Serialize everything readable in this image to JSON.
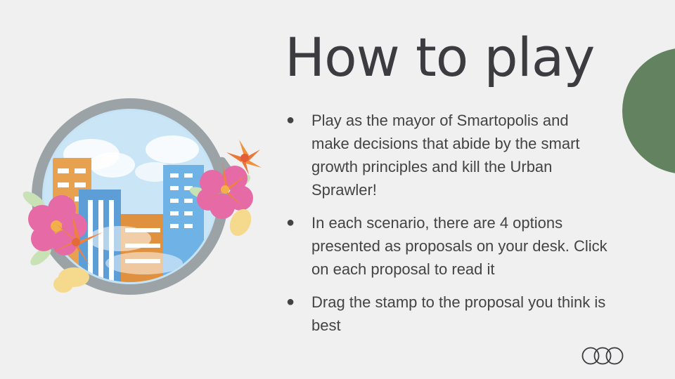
{
  "title": "How to play",
  "bullets": [
    {
      "marker": "●",
      "text": "Play as the mayor of Smartopolis and make decisions that abide by the smart growth principles and kill the Urban Sprawler!"
    },
    {
      "marker": "●",
      "text": "In each scenario, there are 4 options presented as proposals on your desk. Click on each proposal to read it"
    },
    {
      "marker": "●",
      "text": "Drag the stamp to the proposal you think is best"
    }
  ],
  "illustration": {
    "icon": "bomb-city-icon"
  },
  "logo": {
    "icon": "three-rings-logo-icon"
  },
  "colors": {
    "background": "#f0f0f0",
    "accent_circle": "#628260",
    "title": "#3b3b40",
    "body_text": "#434343"
  }
}
